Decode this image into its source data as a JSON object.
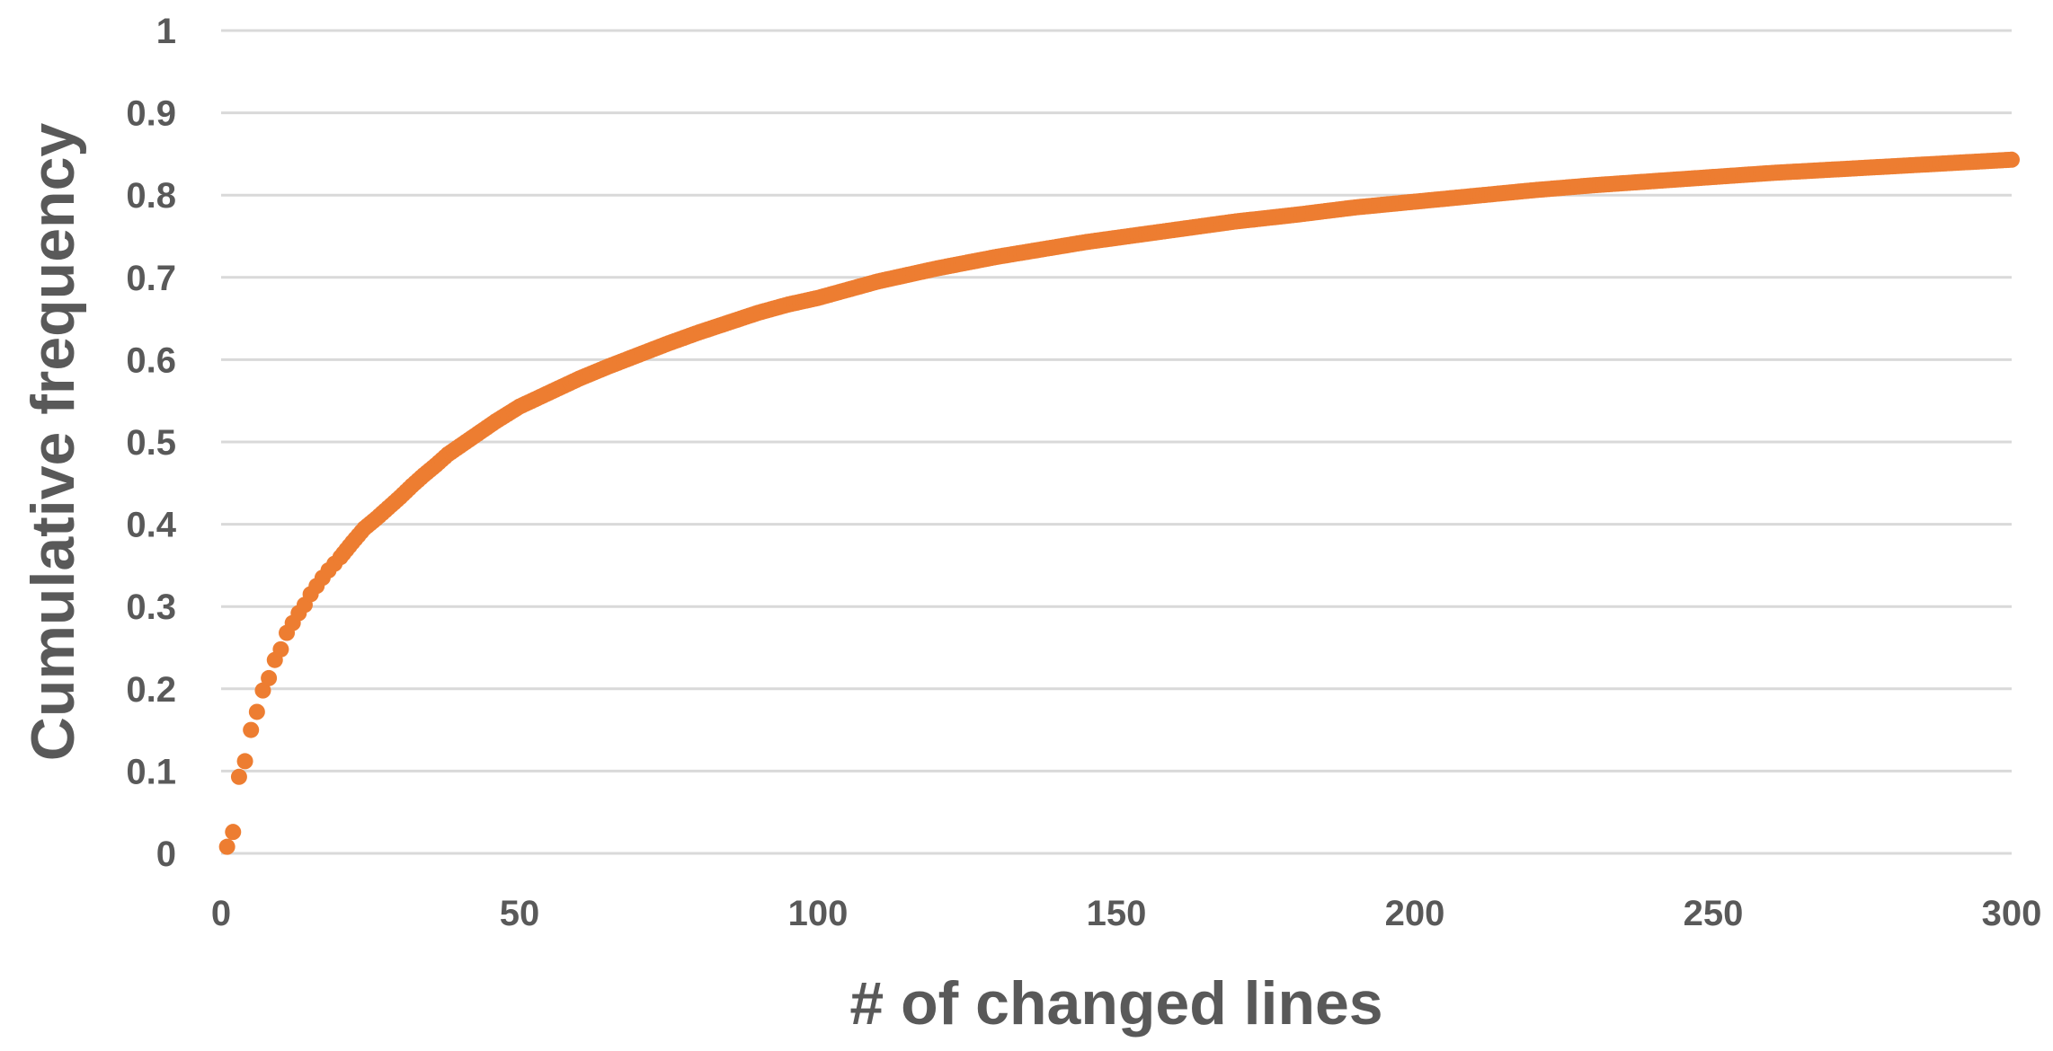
{
  "chart_data": {
    "type": "scatter",
    "title": "",
    "xlabel": "# of changed lines",
    "ylabel": "Cumulative frequency",
    "xlim": [
      0,
      300
    ],
    "ylim": [
      0,
      1
    ],
    "x_ticks": [
      "0",
      "50",
      "100",
      "150",
      "200",
      "250",
      "300"
    ],
    "y_ticks": [
      "0",
      "0.1",
      "0.2",
      "0.3",
      "0.4",
      "0.5",
      "0.6",
      "0.7",
      "0.8",
      "0.9",
      "1"
    ],
    "grid": "horizontal",
    "legend": "none",
    "marker_color": "#ED7D31",
    "grid_color": "#D9D9D9",
    "text_color": "#595959",
    "series": [
      {
        "x": [
          1,
          2,
          3,
          4,
          5,
          6,
          7,
          8,
          9,
          10,
          11,
          12,
          13,
          14,
          15,
          16,
          17,
          18,
          19,
          20,
          22,
          24,
          26,
          28,
          30,
          32,
          34,
          36,
          38,
          40,
          43,
          46,
          50,
          55,
          60,
          65,
          70,
          75,
          80,
          85,
          90,
          95,
          100,
          105,
          110,
          115,
          120,
          125,
          130,
          135,
          140,
          145,
          150,
          160,
          170,
          180,
          190,
          200,
          210,
          220,
          230,
          240,
          250,
          260,
          270,
          280,
          290,
          300
        ],
        "y": [
          0.008,
          0.026,
          0.093,
          0.112,
          0.15,
          0.172,
          0.198,
          0.213,
          0.235,
          0.248,
          0.268,
          0.28,
          0.292,
          0.302,
          0.315,
          0.325,
          0.335,
          0.344,
          0.352,
          0.36,
          0.378,
          0.395,
          0.407,
          0.42,
          0.433,
          0.447,
          0.46,
          0.472,
          0.485,
          0.495,
          0.51,
          0.525,
          0.543,
          0.56,
          0.577,
          0.592,
          0.606,
          0.62,
          0.633,
          0.645,
          0.657,
          0.667,
          0.675,
          0.685,
          0.695,
          0.703,
          0.711,
          0.718,
          0.725,
          0.731,
          0.737,
          0.743,
          0.748,
          0.758,
          0.768,
          0.776,
          0.785,
          0.792,
          0.799,
          0.806,
          0.812,
          0.817,
          0.822,
          0.827,
          0.831,
          0.835,
          0.839,
          0.843
        ]
      }
    ]
  }
}
